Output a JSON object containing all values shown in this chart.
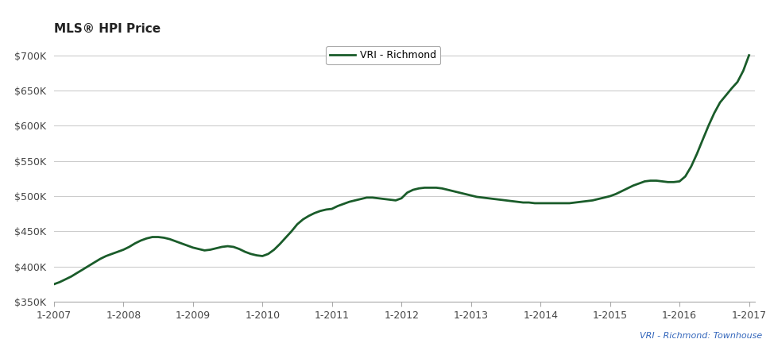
{
  "title": "MLS® HPI Price",
  "legend_label": "VRI - Richmond",
  "watermark": "VRI - Richmond: Townhouse",
  "line_color": "#1a5c2a",
  "line_width": 2.0,
  "background_color": "#ffffff",
  "grid_color": "#cccccc",
  "x_tick_labels": [
    "1-2007",
    "1-2008",
    "1-2009",
    "1-2010",
    "1-2011",
    "1-2012",
    "1-2013",
    "1-2014",
    "1-2015",
    "1-2016",
    "1-2017"
  ],
  "ylim": [
    350000,
    720000
  ],
  "yticks": [
    350000,
    400000,
    450000,
    500000,
    550000,
    600000,
    650000,
    700000
  ],
  "data": {
    "x": [
      2007.0,
      2007.083,
      2007.167,
      2007.25,
      2007.333,
      2007.417,
      2007.5,
      2007.583,
      2007.667,
      2007.75,
      2007.833,
      2007.917,
      2008.0,
      2008.083,
      2008.167,
      2008.25,
      2008.333,
      2008.417,
      2008.5,
      2008.583,
      2008.667,
      2008.75,
      2008.833,
      2008.917,
      2009.0,
      2009.083,
      2009.167,
      2009.25,
      2009.333,
      2009.417,
      2009.5,
      2009.583,
      2009.667,
      2009.75,
      2009.833,
      2009.917,
      2010.0,
      2010.083,
      2010.167,
      2010.25,
      2010.333,
      2010.417,
      2010.5,
      2010.583,
      2010.667,
      2010.75,
      2010.833,
      2010.917,
      2011.0,
      2011.083,
      2011.167,
      2011.25,
      2011.333,
      2011.417,
      2011.5,
      2011.583,
      2011.667,
      2011.75,
      2011.833,
      2011.917,
      2012.0,
      2012.083,
      2012.167,
      2012.25,
      2012.333,
      2012.417,
      2012.5,
      2012.583,
      2012.667,
      2012.75,
      2012.833,
      2012.917,
      2013.0,
      2013.083,
      2013.167,
      2013.25,
      2013.333,
      2013.417,
      2013.5,
      2013.583,
      2013.667,
      2013.75,
      2013.833,
      2013.917,
      2014.0,
      2014.083,
      2014.167,
      2014.25,
      2014.333,
      2014.417,
      2014.5,
      2014.583,
      2014.667,
      2014.75,
      2014.833,
      2014.917,
      2015.0,
      2015.083,
      2015.167,
      2015.25,
      2015.333,
      2015.417,
      2015.5,
      2015.583,
      2015.667,
      2015.75,
      2015.833,
      2015.917,
      2016.0,
      2016.083,
      2016.167,
      2016.25,
      2016.333,
      2016.417,
      2016.5,
      2016.583,
      2016.667,
      2016.75,
      2016.833,
      2016.917,
      2017.0
    ],
    "y": [
      375000,
      378000,
      382000,
      386000,
      391000,
      396000,
      401000,
      406000,
      411000,
      415000,
      418000,
      421000,
      424000,
      428000,
      433000,
      437000,
      440000,
      442000,
      442000,
      441000,
      439000,
      436000,
      433000,
      430000,
      427000,
      425000,
      423000,
      424000,
      426000,
      428000,
      429000,
      428000,
      425000,
      421000,
      418000,
      416000,
      415000,
      418000,
      424000,
      432000,
      441000,
      450000,
      460000,
      467000,
      472000,
      476000,
      479000,
      481000,
      482000,
      486000,
      489000,
      492000,
      494000,
      496000,
      498000,
      498000,
      497000,
      496000,
      495000,
      494000,
      497000,
      505000,
      509000,
      511000,
      512000,
      512000,
      512000,
      511000,
      509000,
      507000,
      505000,
      503000,
      501000,
      499000,
      498000,
      497000,
      496000,
      495000,
      494000,
      493000,
      492000,
      491000,
      491000,
      490000,
      490000,
      490000,
      490000,
      490000,
      490000,
      490000,
      491000,
      492000,
      493000,
      494000,
      496000,
      498000,
      500000,
      503000,
      507000,
      511000,
      515000,
      518000,
      521000,
      522000,
      522000,
      521000,
      520000,
      520000,
      521000,
      528000,
      542000,
      560000,
      580000,
      600000,
      618000,
      633000,
      643000,
      653000,
      662000,
      678000,
      700000
    ]
  }
}
